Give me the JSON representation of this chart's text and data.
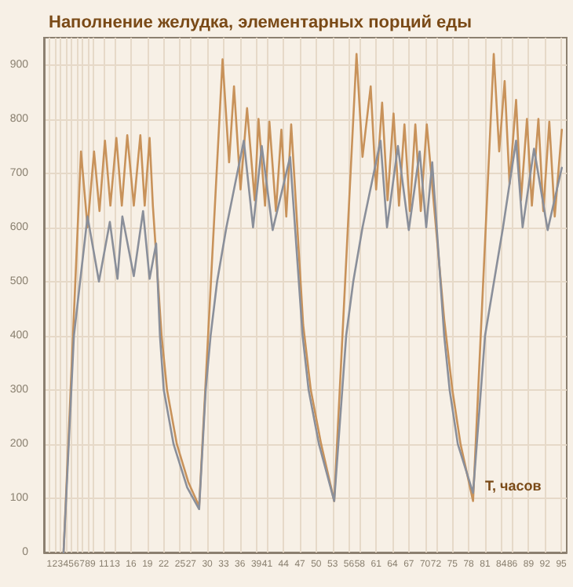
{
  "chart_data": {
    "type": "line",
    "title": "Наполнение желудка, элементарных порций еды",
    "xlabel": "T, часов",
    "xlim": [
      0,
      96
    ],
    "xticks": [
      1,
      2,
      3,
      4,
      5,
      6,
      7,
      8,
      9,
      11,
      13,
      16,
      19,
      22,
      25,
      27,
      30,
      33,
      36,
      39,
      41,
      44,
      47,
      50,
      53,
      56,
      58,
      61,
      64,
      67,
      70,
      72,
      75,
      78,
      81,
      84,
      86,
      89,
      92,
      95
    ],
    "ylim": [
      0,
      950
    ],
    "yticks": [
      0,
      100,
      200,
      300,
      400,
      500,
      600,
      700,
      800,
      900
    ],
    "grid": true,
    "marker": "none",
    "line_style": "solid",
    "series": [
      {
        "color": "#c8925a",
        "x": [
          3.6,
          6.8,
          8.0,
          9.2,
          10.2,
          11.2,
          12.2,
          13.3,
          14.3,
          15.3,
          16.5,
          17.7,
          18.5,
          19.4,
          20.0,
          21.6,
          22.6,
          24.4,
          26.5,
          28.5,
          32.8,
          34.0,
          34.9,
          36.1,
          37.3,
          38.7,
          39.4,
          40.6,
          41.4,
          42.6,
          43.6,
          44.5,
          45.4,
          47.6,
          49.0,
          50.9,
          53.3,
          57.4,
          58.5,
          60.0,
          61.0,
          62.1,
          63.1,
          64.2,
          65.2,
          66.2,
          67.2,
          68.2,
          69.2,
          70.3,
          73.5,
          75.0,
          76.5,
          78.8,
          82.6,
          83.6,
          84.6,
          85.5,
          86.7,
          87.6,
          88.7,
          89.6,
          90.8,
          91.7,
          92.8,
          93.8,
          95.1
        ],
        "values": [
          0,
          740,
          600,
          740,
          630,
          760,
          640,
          765,
          640,
          770,
          640,
          770,
          640,
          765,
          640,
          400,
          300,
          200,
          130,
          85,
          910,
          720,
          860,
          670,
          820,
          650,
          800,
          640,
          795,
          630,
          780,
          620,
          790,
          420,
          300,
          200,
          95,
          920,
          730,
          860,
          670,
          830,
          650,
          810,
          640,
          790,
          630,
          790,
          630,
          790,
          430,
          300,
          200,
          95,
          920,
          740,
          870,
          680,
          835,
          650,
          800,
          640,
          800,
          630,
          795,
          620,
          780
        ]
      },
      {
        "color": "#8a8f9a",
        "x": [
          3.6,
          5.5,
          8.0,
          10.1,
          12.1,
          13.5,
          14.4,
          16.5,
          18.2,
          19.4,
          20.6,
          21.3,
          22.0,
          23.8,
          26.3,
          28.5,
          29.7,
          30.6,
          31.8,
          33.5,
          36.7,
          38.4,
          40.0,
          42.0,
          45.2,
          47.5,
          48.6,
          50.5,
          53.3,
          55.5,
          56.8,
          58.5,
          61.8,
          63.0,
          65.0,
          67.0,
          69.0,
          70.2,
          71.3,
          73.5,
          74.5,
          76.0,
          78.8,
          81.0,
          84.3,
          86.7,
          87.9,
          90.0,
          92.5,
          95.1
        ],
        "values": [
          0,
          400,
          620,
          500,
          610,
          505,
          620,
          510,
          630,
          505,
          570,
          400,
          300,
          200,
          120,
          80,
          300,
          400,
          500,
          600,
          760,
          600,
          750,
          595,
          730,
          400,
          300,
          200,
          95,
          400,
          500,
          600,
          760,
          600,
          750,
          595,
          740,
          600,
          720,
          400,
          300,
          200,
          110,
          400,
          600,
          760,
          600,
          745,
          595,
          710
        ]
      }
    ]
  }
}
